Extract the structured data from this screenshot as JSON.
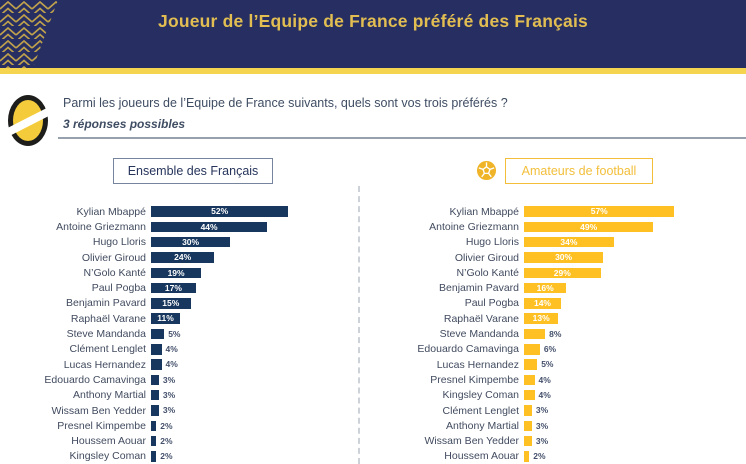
{
  "header": {
    "title": "Joueur de l’Equipe de France préféré des Français"
  },
  "question": {
    "text": "Parmi les joueurs de l’Equipe de France suivants, quels sont vos trois préférés ?",
    "subtext": "3 réponses possibles",
    "logo": "ball-slash-logo"
  },
  "colors": {
    "header_bg": "#272F62",
    "header_title": "#E2BE52",
    "gold_stripe": "#F5D44F",
    "navy_bar": "#17375E",
    "gold_bar": "#FFC024",
    "label_text": "#414B5F",
    "divider": "#CDD2D9"
  },
  "chart_data": [
    {
      "type": "bar",
      "orientation": "horizontal",
      "title": "Ensemble des Français",
      "unit": "%",
      "bar_color": "#17375E",
      "xlim": [
        0,
        60
      ],
      "grid": false,
      "categories": [
        "Kylian Mbappé",
        "Antoine Griezmann",
        "Hugo Lloris",
        "Olivier Giroud",
        "N’Golo Kanté",
        "Paul Pogba",
        "Benjamin Pavard",
        "Raphaël Varane",
        "Steve Mandanda",
        "Clément Lenglet",
        "Lucas Hernandez",
        "Edouardo Camavinga",
        "Anthony Martial",
        "Wissam Ben Yedder",
        "Presnel Kimpembe",
        "Houssem Aouar",
        "Kingsley Coman"
      ],
      "values": [
        52,
        44,
        30,
        24,
        19,
        17,
        15,
        11,
        5,
        4,
        4,
        3,
        3,
        3,
        2,
        2,
        2
      ]
    },
    {
      "type": "bar",
      "orientation": "horizontal",
      "title": "Amateurs de football",
      "unit": "%",
      "icon": "soccer-ball-icon",
      "bar_color": "#FFC024",
      "xlim": [
        0,
        60
      ],
      "grid": false,
      "categories": [
        "Kylian Mbappé",
        "Antoine Griezmann",
        "Hugo Lloris",
        "Olivier Giroud",
        "N’Golo Kanté",
        "Benjamin Pavard",
        "Paul Pogba",
        "Raphaël Varane",
        "Steve Mandanda",
        "Edouardo Camavinga",
        "Lucas Hernandez",
        "Presnel Kimpembe",
        "Kingsley Coman",
        "Clément Lenglet",
        "Anthony Martial",
        "Wissam Ben Yedder",
        "Houssem Aouar"
      ],
      "values": [
        57,
        49,
        34,
        30,
        29,
        16,
        14,
        13,
        8,
        6,
        5,
        4,
        4,
        3,
        3,
        3,
        2
      ]
    }
  ]
}
